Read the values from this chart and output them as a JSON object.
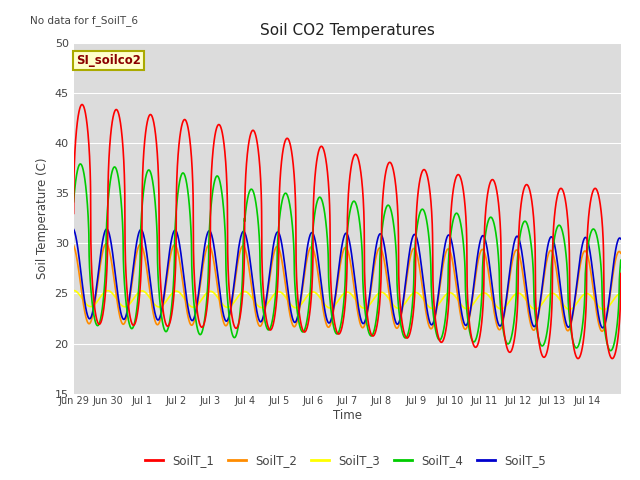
{
  "title": "Soil CO2 Temperatures",
  "ylabel": "Soil Temperature (C)",
  "xlabel": "Time",
  "note": "No data for f_SoilT_6",
  "annotation": "SI_soilco2",
  "ylim": [
    15,
    50
  ],
  "yticks": [
    15,
    20,
    25,
    30,
    35,
    40,
    45,
    50
  ],
  "bg_color": "#e0e0e0",
  "plot_bg": "#dcdcdc",
  "series_colors": {
    "SoilT_1": "#ff0000",
    "SoilT_2": "#ff8c00",
    "SoilT_3": "#ffff00",
    "SoilT_4": "#00cc00",
    "SoilT_5": "#0000cd"
  },
  "x_tick_labels": [
    "Jun 29",
    "Jun 30",
    "Jul 1",
    "Jul 2",
    "Jul 3",
    "Jul 4",
    "Jul 5",
    "Jul 6",
    "Jul 7",
    "Jul 8",
    "Jul 9",
    "Jul 10",
    "Jul 11",
    "Jul 12",
    "Jul 13",
    "Jul 14"
  ],
  "n_days": 16
}
